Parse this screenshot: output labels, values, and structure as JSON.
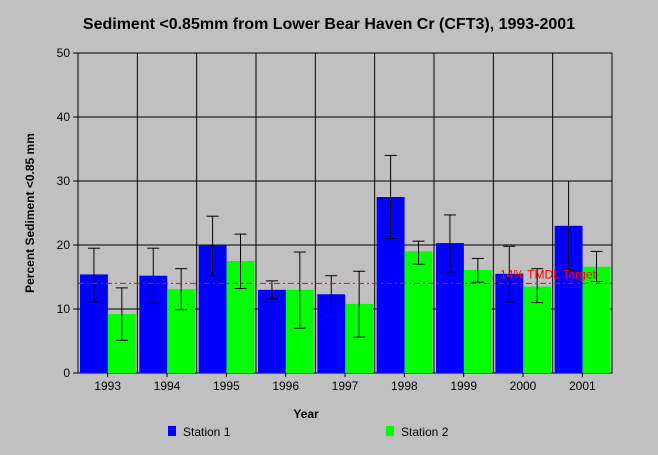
{
  "chart_data": {
    "type": "bar",
    "title": "Sediment <0.85mm from Lower Bear Haven Cr (CFT3), 1993-2001",
    "xlabel": "Year",
    "ylabel": "Percent Sediment <0.85 mm",
    "ylim": [
      0,
      50
    ],
    "yticks": [
      "0",
      "10",
      "20",
      "30",
      "40",
      "50"
    ],
    "categories": [
      "1993",
      "1994",
      "1995",
      "1996",
      "1997",
      "1998",
      "1999",
      "2000",
      "2001"
    ],
    "series": [
      {
        "name": "Station 1",
        "color": "#0000ff",
        "values": [
          15.4,
          15.2,
          20.0,
          13.0,
          12.3,
          27.5,
          20.3,
          15.5,
          23.0
        ],
        "error_low": [
          11.1,
          10.9,
          15.2,
          11.6,
          9.3,
          21.0,
          15.8,
          11.1,
          16.0
        ],
        "error_high": [
          19.5,
          19.5,
          24.5,
          14.4,
          15.2,
          34.0,
          24.7,
          19.8,
          30.0
        ]
      },
      {
        "name": "Station 2",
        "color": "#00ff00",
        "values": [
          9.2,
          13.1,
          17.5,
          13.0,
          10.8,
          19.0,
          16.1,
          13.5,
          16.6
        ],
        "error_low": [
          5.1,
          9.9,
          13.2,
          7.0,
          5.6,
          17.0,
          14.2,
          11.0,
          14.3
        ],
        "error_high": [
          13.3,
          16.3,
          21.7,
          18.9,
          15.9,
          20.6,
          17.9,
          16.3,
          19.0
        ]
      }
    ],
    "reference_line": {
      "value": 14,
      "label": "14% TMDL Target",
      "color": "#ff0000"
    },
    "grid": true,
    "legend_position": "bottom"
  }
}
